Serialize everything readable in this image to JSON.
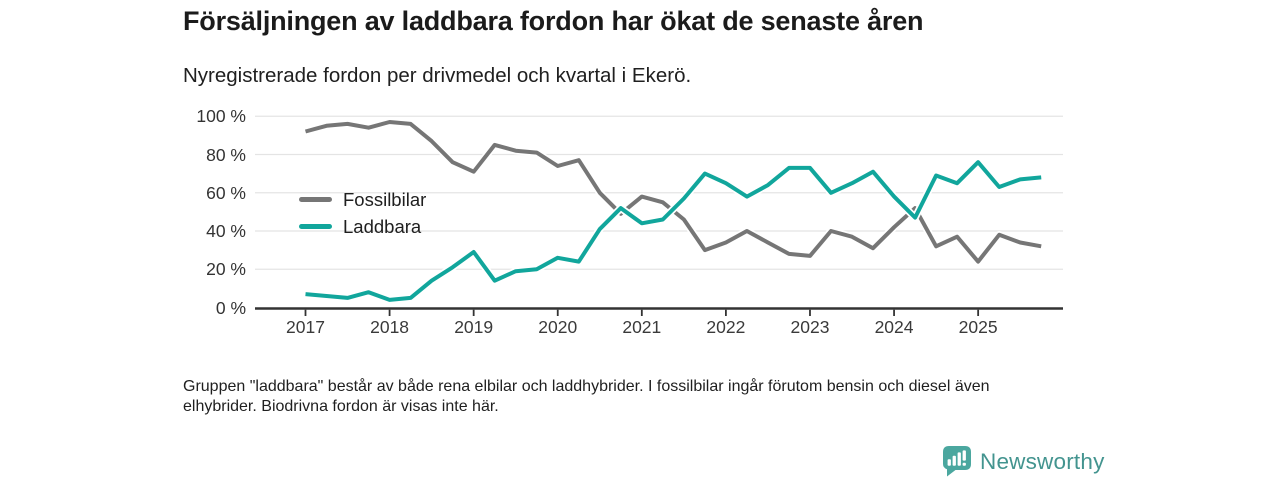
{
  "header": {
    "title": "Försäljningen av laddbara fordon har ökat de senaste åren",
    "subtitle": "Nyregistrerade fordon per drivmedel och kvartal i Ekerö."
  },
  "chart_data": {
    "type": "line",
    "title": "Försäljningen av laddbara fordon har ökat de senaste åren",
    "subtitle": "Nyregistrerade fordon per drivmedel och kvartal i Ekerö.",
    "x_unit": "quarter",
    "categories": [
      "2017-Q1",
      "2017-Q2",
      "2017-Q3",
      "2017-Q4",
      "2018-Q1",
      "2018-Q2",
      "2018-Q3",
      "2018-Q4",
      "2019-Q1",
      "2019-Q2",
      "2019-Q3",
      "2019-Q4",
      "2020-Q1",
      "2020-Q2",
      "2020-Q3",
      "2020-Q4",
      "2021-Q1",
      "2021-Q2",
      "2021-Q3",
      "2021-Q4",
      "2022-Q1",
      "2022-Q2",
      "2022-Q3",
      "2022-Q4",
      "2023-Q1",
      "2023-Q2",
      "2023-Q3",
      "2023-Q4",
      "2024-Q1",
      "2024-Q2",
      "2024-Q3",
      "2024-Q4",
      "2025-Q1",
      "2025-Q2",
      "2025-Q3",
      "2025-Q4"
    ],
    "series": [
      {
        "name": "Fossilbilar",
        "color": "#767676",
        "values": [
          92,
          95,
          96,
          94,
          97,
          96,
          87,
          76,
          71,
          85,
          82,
          81,
          74,
          77,
          60,
          49,
          58,
          55,
          46,
          30,
          34,
          40,
          34,
          28,
          27,
          40,
          37,
          31,
          42,
          52,
          32,
          37,
          24,
          38,
          34,
          32
        ]
      },
      {
        "name": "Laddbara",
        "color": "#11a69c",
        "values": [
          7,
          6,
          5,
          8,
          4,
          5,
          14,
          21,
          29,
          14,
          19,
          20,
          26,
          24,
          41,
          52,
          44,
          46,
          57,
          70,
          65,
          58,
          64,
          73,
          73,
          60,
          65,
          71,
          58,
          47,
          69,
          65,
          76,
          63,
          67,
          68
        ]
      }
    ],
    "ylim": [
      0,
      100
    ],
    "y_ticks": [
      {
        "value": 100,
        "label": "100 %"
      },
      {
        "value": 80,
        "label": "80 %"
      },
      {
        "value": 60,
        "label": "60 %"
      },
      {
        "value": 40,
        "label": "40 %"
      },
      {
        "value": 20,
        "label": "20 %"
      },
      {
        "value": 0,
        "label": "0 %"
      }
    ],
    "x_tick_labels": [
      "2017",
      "2018",
      "2019",
      "2020",
      "2021",
      "2022",
      "2023",
      "2024",
      "2025"
    ],
    "grid": "horizontal",
    "legend_position": "inside-left",
    "xlabel": "",
    "ylabel": ""
  },
  "footer": {
    "note": "Gruppen \"laddbara\" består av både rena elbilar och laddhybrider. I fossilbilar ingår förutom bensin och diesel även elhybrider. Biodrivna fordon är visas inte här."
  },
  "branding": {
    "logo_text": "Newsworthy",
    "logo_icon": "bar-chart-speech-bubble-icon",
    "icon_color": "#4ba79f",
    "text_color": "#43948f"
  },
  "colors": {
    "background": "#ffffff",
    "gridline": "#e4e4e4",
    "axis": "#333333",
    "title_text": "#1b1b1b",
    "fossilbilar_line": "#767676",
    "laddbara_line": "#11a69c"
  }
}
